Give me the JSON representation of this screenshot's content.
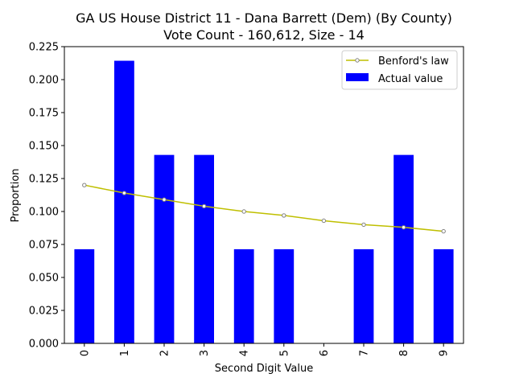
{
  "chart_data": {
    "type": "bar",
    "title": "GA US House District 11 - Dana Barrett (Dem) (By County)",
    "subtitle": "Vote Count - 160,612, Size - 14",
    "xlabel": "Second Digit Value",
    "ylabel": "Proportion",
    "categories": [
      "0",
      "1",
      "2",
      "3",
      "4",
      "5",
      "6",
      "7",
      "8",
      "9"
    ],
    "ylim": [
      0,
      0.225
    ],
    "yticks": [
      "0.000",
      "0.025",
      "0.050",
      "0.075",
      "0.100",
      "0.125",
      "0.150",
      "0.175",
      "0.200",
      "0.225"
    ],
    "grid": false,
    "legend_position": "top-right",
    "series": [
      {
        "name": "Benford's law",
        "kind": "line",
        "color": "#bfbf00",
        "marker_color": "#808080",
        "values": [
          0.12,
          0.114,
          0.109,
          0.104,
          0.1,
          0.097,
          0.093,
          0.09,
          0.088,
          0.085
        ]
      },
      {
        "name": "Actual value",
        "kind": "bar",
        "color": "#0000ff",
        "values": [
          0.0714,
          0.2143,
          0.1429,
          0.1429,
          0.0714,
          0.0714,
          0.0,
          0.0714,
          0.1429,
          0.0714
        ]
      }
    ]
  }
}
